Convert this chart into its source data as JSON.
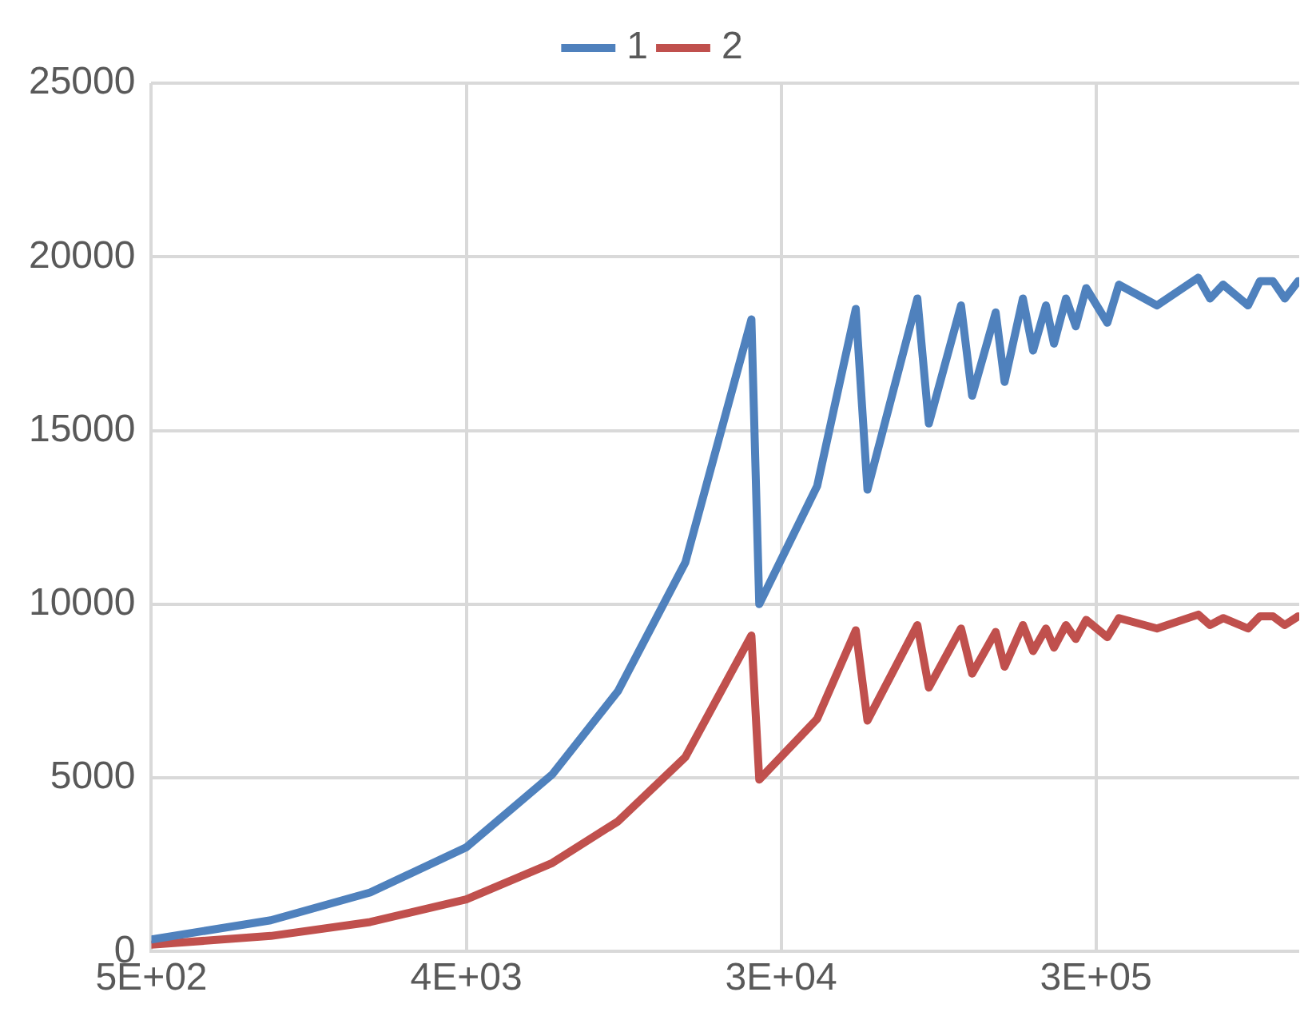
{
  "chart_data": {
    "type": "line",
    "log": "x",
    "xlim": [
      500,
      980000
    ],
    "xticks": [
      {
        "value": 500,
        "label": "5E+02"
      },
      {
        "value": 4000,
        "label": "4E+03"
      },
      {
        "value": 32000,
        "label": "3E+04"
      },
      {
        "value": 256000,
        "label": "3E+05"
      }
    ],
    "ylim": [
      0,
      25000
    ],
    "yticks": [
      0,
      5000,
      10000,
      15000,
      20000,
      25000
    ],
    "grid": true,
    "legend": "top",
    "marker": "none",
    "line_style": "solid",
    "x": [
      500,
      1100,
      2120,
      4000,
      7060,
      10900,
      17000,
      26300,
      27700,
      40600,
      52400,
      56600,
      78700,
      84900,
      105000,
      113000,
      132000,
      140000,
      158000,
      169000,
      184000,
      194000,
      210000,
      224000,
      240000,
      276000,
      298000,
      383000,
      503000,
      544000,
      593000,
      699000,
      756000,
      824000,
      891000,
      973000
    ],
    "series": [
      {
        "name": "1",
        "color": "#4f81bd",
        "values": [
          350,
          900,
          1700,
          3000,
          5100,
          7500,
          11200,
          18200,
          10000,
          13400,
          18500,
          13300,
          18800,
          15200,
          18600,
          16000,
          18400,
          16400,
          18800,
          17300,
          18600,
          17500,
          18800,
          18000,
          19100,
          18100,
          19200,
          18600,
          19400,
          18800,
          19200,
          18600,
          19300,
          19300,
          18800,
          19300
        ]
      },
      {
        "name": "2",
        "color": "#c0504d",
        "values": [
          200,
          450,
          850,
          1500,
          2550,
          3750,
          5600,
          9100,
          4950,
          6700,
          9250,
          6650,
          9400,
          7600,
          9300,
          8000,
          9200,
          8200,
          9400,
          8650,
          9300,
          8750,
          9400,
          9000,
          9550,
          9050,
          9600,
          9300,
          9700,
          9400,
          9600,
          9300,
          9650,
          9650,
          9400,
          9650
        ]
      }
    ]
  }
}
